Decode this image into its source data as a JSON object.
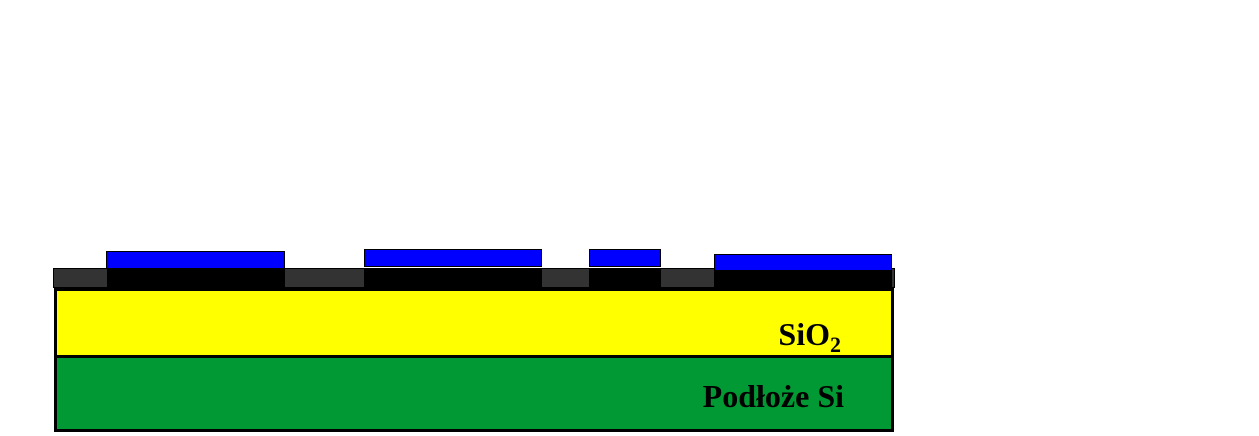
{
  "labels": {
    "oxide_main": "SiO",
    "oxide_subscript": "2",
    "substrate": "Podłoże Si"
  },
  "colors": {
    "substrate": "#009933",
    "oxide": "#ffff00",
    "thin_film": "#333333",
    "pattern_base": "#000000",
    "pattern_top": "#0000ff",
    "outline": "#000000"
  }
}
